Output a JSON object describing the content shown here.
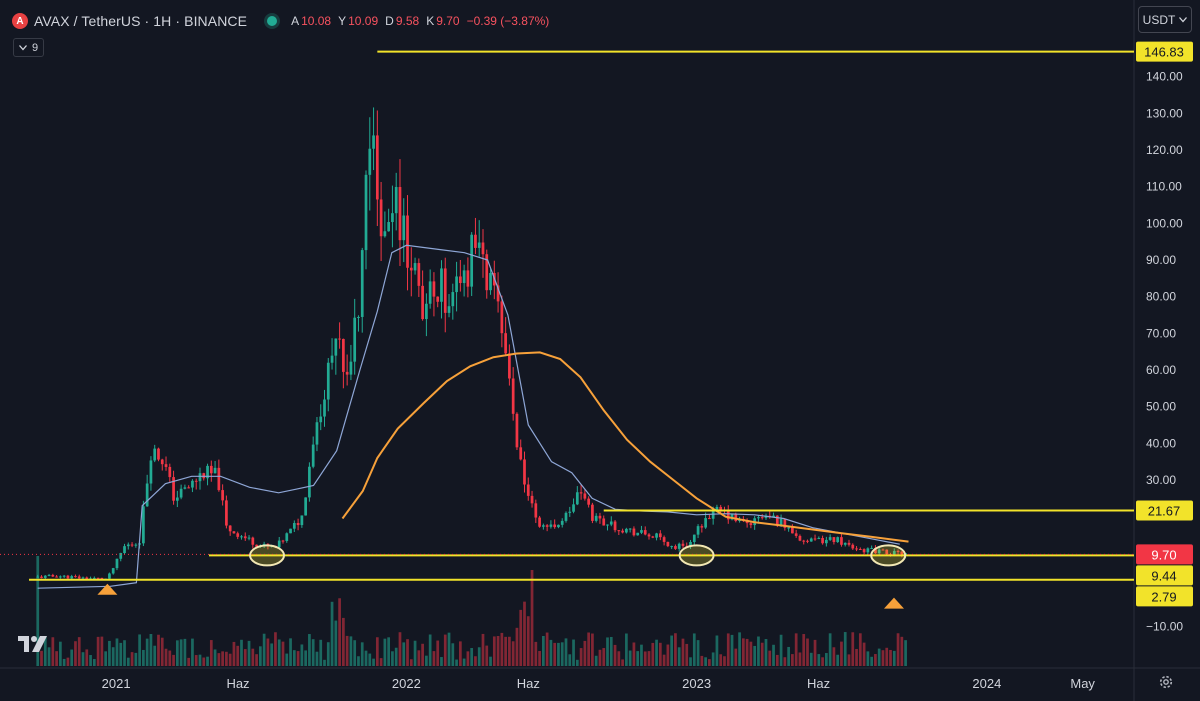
{
  "header": {
    "symbol_title": "AVAX / TetherUS · 1H · BINANCE",
    "logo_letter": "A",
    "ohlc": [
      {
        "label": "A",
        "value": "10.08"
      },
      {
        "label": "Y",
        "value": "10.09"
      },
      {
        "label": "D",
        "value": "9.58"
      },
      {
        "label": "K",
        "value": "9.70"
      }
    ],
    "change": "−0.39 (−3.87%)",
    "indicator_count": "9"
  },
  "currency_button": "USDT",
  "icons": {
    "logo": "tradingview-logo-icon",
    "settings": "gear-icon",
    "dropdown": "chevron-down-icon",
    "collapse": "chevron-down-icon"
  },
  "colors": {
    "background": "#131722",
    "up": "#22ab94",
    "down": "#f23645",
    "ma_short": "#8ea6d6",
    "ma_long": "#f7a13a",
    "level_line": "#f2e32a",
    "price_tag": "#f23645",
    "marker": "#f7a13a"
  },
  "chart_data": {
    "type": "candlestick",
    "symbol": "AVAX / TetherUS",
    "ylim": [
      -18,
      150
    ],
    "y_ticks": [
      140,
      130,
      120,
      110,
      100,
      90,
      80,
      70,
      60,
      50,
      40,
      30,
      20,
      10,
      -10
    ],
    "y_tick_labels": [
      "140.00",
      "130.00",
      "120.00",
      "110.00",
      "100.00",
      "90.00",
      "80.00",
      "70.00",
      "60.00",
      "50.00",
      "40.00",
      "30.00",
      "20.00",
      "",
      "−10.00"
    ],
    "x_tick_labels": [
      {
        "label": "2021",
        "t": 2021.0
      },
      {
        "label": "Haz",
        "t": 2021.42
      },
      {
        "label": "2022",
        "t": 2022.0
      },
      {
        "label": "Haz",
        "t": 2022.42
      },
      {
        "label": "2023",
        "t": 2023.0
      },
      {
        "label": "Haz",
        "t": 2023.42
      },
      {
        "label": "2024",
        "t": 2024.0
      },
      {
        "label": "May",
        "t": 2024.33
      }
    ],
    "close_path": [
      [
        2020.73,
        3.5
      ],
      [
        2020.8,
        3.8
      ],
      [
        2020.9,
        3.2
      ],
      [
        2020.97,
        3.0
      ],
      [
        2021.03,
        12
      ],
      [
        2021.08,
        13
      ],
      [
        2021.12,
        38
      ],
      [
        2021.16,
        36
      ],
      [
        2021.2,
        25
      ],
      [
        2021.25,
        28
      ],
      [
        2021.3,
        32
      ],
      [
        2021.35,
        31
      ],
      [
        2021.38,
        17
      ],
      [
        2021.45,
        14
      ],
      [
        2021.5,
        12
      ],
      [
        2021.55,
        11.5
      ],
      [
        2021.6,
        16
      ],
      [
        2021.64,
        20
      ],
      [
        2021.68,
        42
      ],
      [
        2021.72,
        55
      ],
      [
        2021.76,
        68
      ],
      [
        2021.8,
        60
      ],
      [
        2021.84,
        78
      ],
      [
        2021.87,
        128
      ],
      [
        2021.9,
        110
      ],
      [
        2021.93,
        92
      ],
      [
        2021.97,
        105
      ],
      [
        2022.02,
        88
      ],
      [
        2022.06,
        72
      ],
      [
        2022.1,
        85
      ],
      [
        2022.15,
        78
      ],
      [
        2022.2,
        86
      ],
      [
        2022.25,
        95
      ],
      [
        2022.3,
        80
      ],
      [
        2022.34,
        65
      ],
      [
        2022.38,
        40
      ],
      [
        2022.42,
        25
      ],
      [
        2022.46,
        18
      ],
      [
        2022.5,
        17
      ],
      [
        2022.55,
        20
      ],
      [
        2022.6,
        27
      ],
      [
        2022.64,
        20
      ],
      [
        2022.7,
        18
      ],
      [
        2022.75,
        16.5
      ],
      [
        2022.8,
        15.5
      ],
      [
        2022.86,
        14.5
      ],
      [
        2022.92,
        11.5
      ],
      [
        2022.98,
        13
      ],
      [
        2023.03,
        20
      ],
      [
        2023.08,
        21.5
      ],
      [
        2023.13,
        19
      ],
      [
        2023.18,
        18
      ],
      [
        2023.23,
        20
      ],
      [
        2023.28,
        19
      ],
      [
        2023.33,
        16
      ],
      [
        2023.38,
        13
      ],
      [
        2023.43,
        13.5
      ],
      [
        2023.48,
        14
      ],
      [
        2023.53,
        12
      ],
      [
        2023.58,
        11
      ],
      [
        2023.63,
        10.5
      ],
      [
        2023.68,
        10
      ],
      [
        2023.72,
        9.7
      ]
    ],
    "series": [
      {
        "type": "moving_average",
        "color": "#8ea6d6",
        "points": [
          [
            2020.73,
            0.5
          ],
          [
            2020.98,
            1.0
          ],
          [
            2021.07,
            2.0
          ],
          [
            2021.09,
            23
          ],
          [
            2021.17,
            29
          ],
          [
            2021.26,
            31
          ],
          [
            2021.36,
            31
          ],
          [
            2021.46,
            28
          ],
          [
            2021.56,
            26.5
          ],
          [
            2021.62,
            27.5
          ],
          [
            2021.68,
            28.5
          ],
          [
            2021.76,
            38
          ],
          [
            2021.84,
            60
          ],
          [
            2021.9,
            76
          ],
          [
            2021.95,
            92
          ],
          [
            2022.0,
            94
          ],
          [
            2022.1,
            93
          ],
          [
            2022.2,
            92
          ],
          [
            2022.28,
            90
          ],
          [
            2022.35,
            75
          ],
          [
            2022.42,
            45
          ],
          [
            2022.5,
            35
          ],
          [
            2022.57,
            32
          ],
          [
            2022.64,
            25
          ],
          [
            2022.72,
            22
          ],
          [
            2022.82,
            21.5
          ],
          [
            2022.9,
            21.3
          ],
          [
            2023.0,
            20.5
          ],
          [
            2023.1,
            20.8
          ],
          [
            2023.2,
            20.5
          ],
          [
            2023.3,
            19.5
          ],
          [
            2023.4,
            17
          ],
          [
            2023.5,
            15.5
          ],
          [
            2023.6,
            14
          ],
          [
            2023.7,
            12.5
          ]
        ]
      },
      {
        "type": "moving_average",
        "color": "#f7a13a",
        "points": [
          [
            2021.78,
            19.5
          ],
          [
            2021.85,
            27
          ],
          [
            2021.9,
            36
          ],
          [
            2021.97,
            44
          ],
          [
            2022.06,
            51
          ],
          [
            2022.14,
            57
          ],
          [
            2022.22,
            61
          ],
          [
            2022.3,
            63.5
          ],
          [
            2022.38,
            64.5
          ],
          [
            2022.46,
            64.8
          ],
          [
            2022.53,
            63
          ],
          [
            2022.6,
            58
          ],
          [
            2022.68,
            49
          ],
          [
            2022.76,
            41
          ],
          [
            2022.84,
            35
          ],
          [
            2022.92,
            30
          ],
          [
            2023.0,
            25
          ],
          [
            2023.1,
            20
          ],
          [
            2023.2,
            18.5
          ],
          [
            2023.3,
            17.5
          ],
          [
            2023.4,
            16.5
          ],
          [
            2023.5,
            15.5
          ],
          [
            2023.6,
            14.5
          ],
          [
            2023.73,
            13.2
          ]
        ]
      }
    ],
    "volume_note": "volume histogram along the bottom, green for up candles and red for down candles",
    "horizontal_levels": [
      {
        "value": 146.83,
        "label": "146.83",
        "from": 2021.9,
        "to": 2024.45,
        "color": "#f2e32a"
      },
      {
        "value": 21.67,
        "label": "21.67",
        "from": 2022.68,
        "to": 2024.45,
        "color": "#f2e32a"
      },
      {
        "value": 9.44,
        "label": "9.44",
        "from": 2021.32,
        "to": 2024.45,
        "color": "#f2e32a"
      },
      {
        "value": 2.79,
        "label": "2.79",
        "from": 2020.7,
        "to": 2024.45,
        "color": "#f2e32a"
      }
    ],
    "current_price": {
      "value": 9.7,
      "label": "9.70",
      "color": "#f23645"
    },
    "ellipse_markers_t": [
      2021.52,
      2023.0,
      2023.66
    ],
    "triangle_markers": [
      {
        "t": 2020.97,
        "value": 2.79
      },
      {
        "t": 2023.68,
        "value": -1.0
      }
    ]
  }
}
